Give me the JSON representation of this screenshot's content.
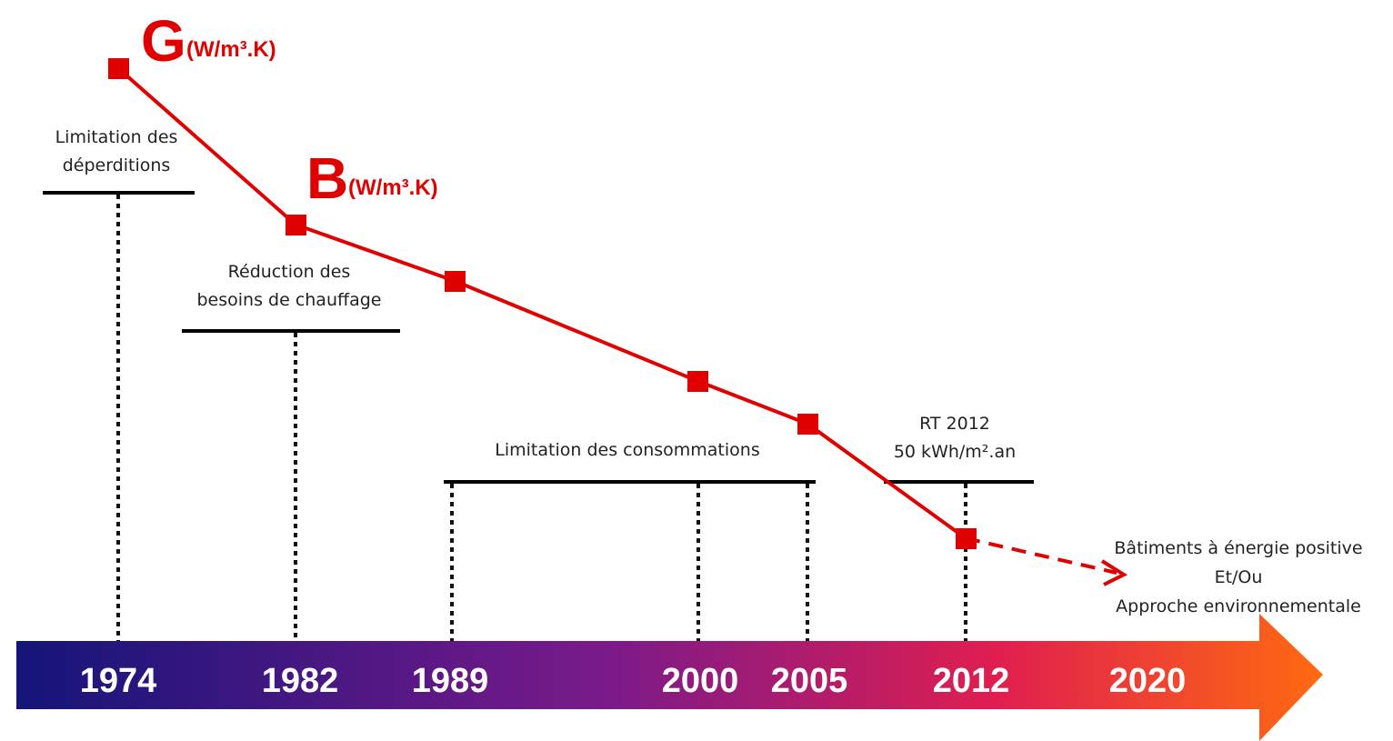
{
  "markers": [
    {
      "letter": "G",
      "unit": "(W/m³.K)"
    },
    {
      "letter": "B",
      "unit": "(W/m³.K)"
    }
  ],
  "periods": [
    {
      "lines": [
        "Limitation des",
        "déperditions"
      ]
    },
    {
      "lines": [
        "Réduction des",
        "besoins de chauffage"
      ]
    },
    {
      "lines": [
        "Limitation des consommations"
      ]
    },
    {
      "lines": [
        "RT 2012",
        "50 kWh/m².an"
      ]
    }
  ],
  "goal": {
    "lines": [
      "Bâtiments à énergie positive",
      "Et/Ou",
      "Approche environnementale"
    ]
  },
  "timeline": {
    "years": [
      "1974",
      "1982",
      "1989",
      "2000",
      "2005",
      "2012",
      "2020"
    ]
  }
}
